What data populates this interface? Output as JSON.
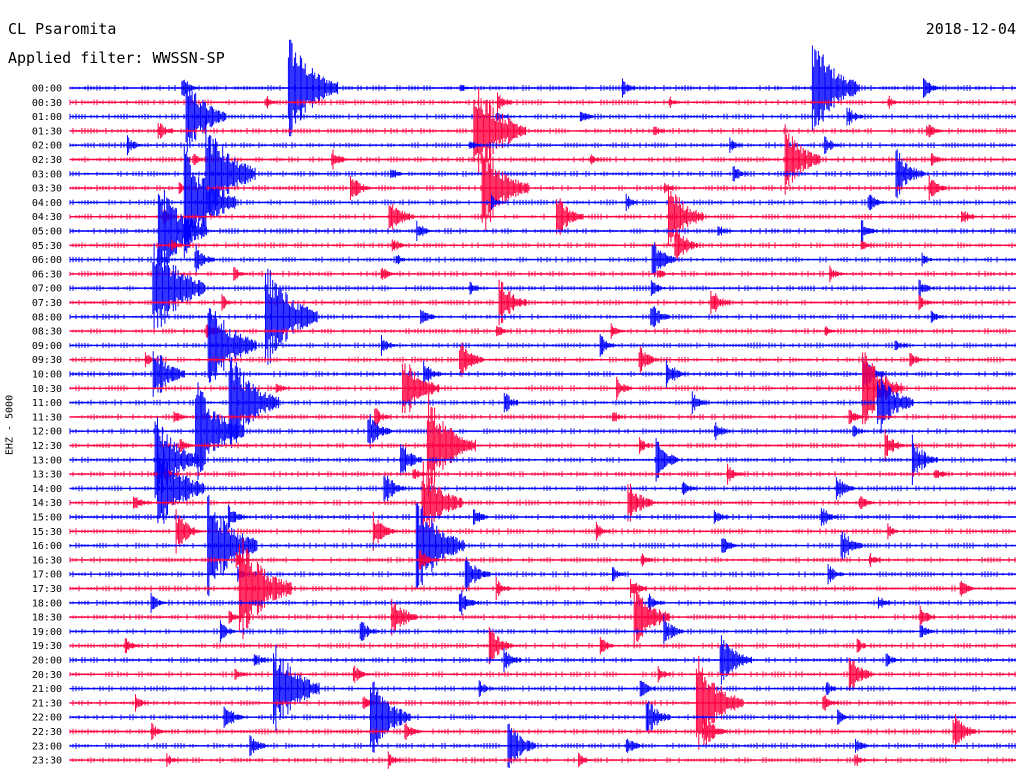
{
  "header": {
    "station": "CL Psaromita",
    "filter": "Applied filter: WWSSN-SP",
    "date": "2018-12-04"
  },
  "chart_data": {
    "type": "line",
    "title": "CL Psaromita",
    "subtitle": "Applied filter: WWSSN-SP",
    "date": "2018-12-04",
    "ylabel": "EHZ - 5000",
    "xlabel": "",
    "grid": false,
    "legend": "none",
    "colors": {
      "odd": "#0000ff",
      "even": "#ff0040",
      "text": "#000000"
    },
    "trace_labels": [
      "00:00",
      "00:30",
      "01:00",
      "01:30",
      "02:00",
      "02:30",
      "03:00",
      "03:30",
      "04:00",
      "04:30",
      "05:00",
      "05:30",
      "06:00",
      "06:30",
      "07:00",
      "07:30",
      "08:00",
      "08:30",
      "09:00",
      "09:30",
      "10:00",
      "10:30",
      "11:00",
      "11:30",
      "12:00",
      "12:30",
      "13:00",
      "13:30",
      "14:00",
      "14:30",
      "15:00",
      "15:30",
      "16:00",
      "16:30",
      "17:00",
      "17:30",
      "18:00",
      "18:30",
      "19:00",
      "19:30",
      "20:00",
      "20:30",
      "21:00",
      "21:30",
      "22:00",
      "22:30",
      "23:00",
      "23:30"
    ],
    "series": [
      {
        "values": [
          0.1,
          0.95,
          0.02,
          0.08,
          0.9,
          0.12
        ]
      },
      {
        "values": [
          0.03,
          0.1,
          0.02,
          0.05
        ]
      },
      {
        "values": [
          0.7,
          0.02,
          0.08,
          0.12
        ]
      },
      {
        "values": [
          0.1,
          1.0,
          0.03,
          0.08
        ]
      },
      {
        "values": [
          0.08,
          0.02,
          0.05,
          0.1
        ]
      },
      {
        "values": [
          0.05,
          0.12,
          0.02,
          0.6,
          0.06
        ]
      },
      {
        "values": [
          0.95,
          0.03,
          0.08,
          0.4
        ]
      },
      {
        "values": [
          0.03,
          0.2,
          0.85,
          0.02,
          0.15
        ]
      },
      {
        "values": [
          1.0,
          0.04,
          0.06,
          0.1
        ]
      },
      {
        "values": [
          0.05,
          0.3,
          0.35,
          0.6,
          0.08
        ]
      },
      {
        "values": [
          0.9,
          0.1,
          0.04,
          0.12
        ]
      },
      {
        "values": [
          0.03,
          0.06,
          0.3,
          0.02
        ]
      },
      {
        "values": [
          0.2,
          0.02,
          0.3,
          0.03
        ]
      },
      {
        "values": [
          0.04,
          0.06,
          0.02,
          0.05
        ]
      },
      {
        "values": [
          1.0,
          0.03,
          0.08,
          0.1
        ]
      },
      {
        "values": [
          0.05,
          0.4,
          0.2,
          0.04
        ]
      },
      {
        "values": [
          1.0,
          0.1,
          0.2,
          0.03
        ]
      },
      {
        "values": [
          0.1,
          0.04,
          0.06,
          0.02
        ]
      },
      {
        "values": [
          0.9,
          0.08,
          0.12,
          0.05
        ]
      },
      {
        "values": [
          0.05,
          0.3,
          0.2,
          0.06
        ]
      },
      {
        "values": [
          0.5,
          0.15,
          0.2,
          0.25
        ]
      },
      {
        "values": [
          0.04,
          0.6,
          0.1,
          0.7
        ]
      },
      {
        "values": [
          0.95,
          0.12,
          0.1,
          0.6
        ]
      },
      {
        "values": [
          0.05,
          0.1,
          0.04,
          0.08
        ]
      },
      {
        "values": [
          0.9,
          0.3,
          0.1,
          0.06
        ]
      },
      {
        "values": [
          0.06,
          0.9,
          0.05,
          0.2
        ]
      },
      {
        "values": [
          0.8,
          0.25,
          0.3,
          0.35
        ]
      },
      {
        "values": [
          0.04,
          0.06,
          0.1,
          0.05
        ]
      },
      {
        "values": [
          0.85,
          0.25,
          0.08,
          0.2
        ]
      },
      {
        "values": [
          0.1,
          0.7,
          0.35,
          0.06
        ]
      },
      {
        "values": [
          0.15,
          0.1,
          0.08,
          0.12
        ]
      },
      {
        "values": [
          0.3,
          0.25,
          0.06,
          0.04
        ]
      },
      {
        "values": [
          0.95,
          0.9,
          0.1,
          0.25
        ]
      },
      {
        "values": [
          0.06,
          0.12,
          0.04,
          0.05
        ]
      },
      {
        "values": [
          0.04,
          0.3,
          0.06,
          0.1
        ]
      },
      {
        "values": [
          1.0,
          0.1,
          0.12,
          0.08
        ]
      },
      {
        "values": [
          0.08,
          0.2,
          0.1,
          0.06
        ]
      },
      {
        "values": [
          0.05,
          0.35,
          0.6,
          0.1
        ]
      },
      {
        "values": [
          0.1,
          0.15,
          0.2,
          0.08
        ]
      },
      {
        "values": [
          0.06,
          0.3,
          0.08,
          0.04
        ]
      },
      {
        "values": [
          0.08,
          0.15,
          0.5,
          0.06
        ]
      },
      {
        "values": [
          0.04,
          0.1,
          0.05,
          0.3
        ]
      },
      {
        "values": [
          0.85,
          0.06,
          0.1,
          0.04
        ]
      },
      {
        "values": [
          0.05,
          0.08,
          0.9,
          0.1
        ]
      },
      {
        "values": [
          0.2,
          0.7,
          0.3,
          0.05
        ]
      },
      {
        "values": [
          0.06,
          0.1,
          0.25,
          0.3
        ]
      },
      {
        "values": [
          0.15,
          0.4,
          0.1,
          0.06
        ]
      },
      {
        "values": [
          0.04,
          0.06,
          0.03,
          0.05
        ]
      }
    ]
  }
}
